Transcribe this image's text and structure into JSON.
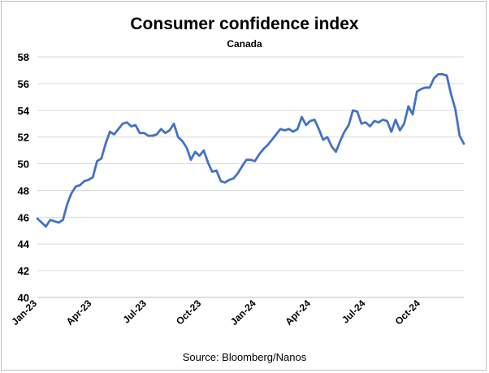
{
  "chart_data": {
    "type": "line",
    "title": "Consumer confidence index",
    "subtitle": "Canada",
    "source": "Source: Bloomberg/Nanos",
    "xlabel": "",
    "ylabel": "",
    "ylim": [
      40,
      58
    ],
    "y_ticks": [
      "40",
      "42",
      "44",
      "46",
      "48",
      "50",
      "52",
      "54",
      "56",
      "58"
    ],
    "x_tick_labels": [
      "Jan-23",
      "Apr-23",
      "Jul-23",
      "Oct-23",
      "Jan-24",
      "Apr-24",
      "Jul-24",
      "Oct-24"
    ],
    "grid": "horizontal",
    "line_color": "#4472C4",
    "grid_color": "#d9d9d9",
    "series": [
      {
        "values": [
          45.9,
          45.6,
          45.3,
          45.8,
          45.7,
          45.6,
          45.8,
          47.0,
          47.8,
          48.3,
          48.4,
          48.7,
          48.8,
          49.0,
          50.2,
          50.4,
          51.5,
          52.4,
          52.2,
          52.6,
          53.0,
          53.1,
          52.8,
          52.9,
          52.3,
          52.3,
          52.1,
          52.1,
          52.2,
          52.6,
          52.3,
          52.5,
          53.0,
          52.0,
          51.7,
          51.2,
          50.3,
          50.9,
          50.6,
          51.0,
          50.1,
          49.4,
          49.5,
          48.7,
          48.6,
          48.8,
          48.9,
          49.3,
          49.8,
          50.3,
          50.3,
          50.2,
          50.7,
          51.1,
          51.4,
          51.8,
          52.2,
          52.6,
          52.5,
          52.6,
          52.4,
          52.6,
          53.5,
          52.9,
          53.2,
          53.3,
          52.6,
          51.8,
          52.0,
          51.3,
          50.9,
          51.7,
          52.4,
          52.9,
          54.0,
          53.9,
          53.0,
          53.1,
          52.8,
          53.2,
          53.1,
          53.3,
          53.2,
          52.4,
          53.3,
          52.5,
          53.0,
          54.3,
          53.7,
          55.4,
          55.6,
          55.7,
          55.7,
          56.4,
          56.7,
          56.7,
          56.6,
          55.2,
          54.1,
          52.1,
          51.5
        ]
      }
    ]
  }
}
